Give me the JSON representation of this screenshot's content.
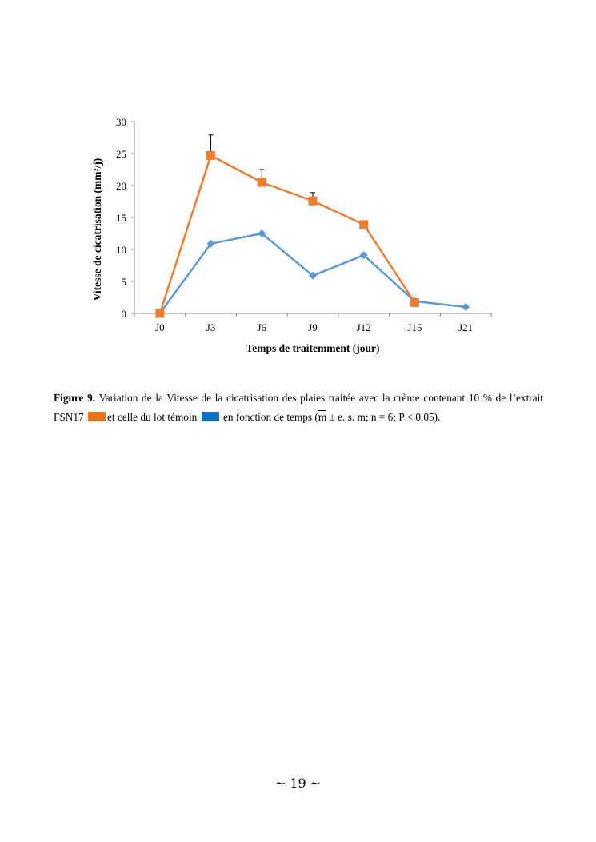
{
  "chart_data": {
    "type": "line",
    "title": "",
    "xlabel": "Temps de traitemment (jour)",
    "ylabel": "Vitesse de cicatrisation (mm²/j)",
    "ylim": [
      0,
      30
    ],
    "yticks": [
      "0",
      "5",
      "10",
      "15",
      "20",
      "25",
      "30"
    ],
    "categories": [
      "J0",
      "J3",
      "J6",
      "J9",
      "J12",
      "J15",
      "J21"
    ],
    "grid": false,
    "legend": "none",
    "series": [
      {
        "name": "Extrait FSN17",
        "color": "#ED7D31",
        "marker": "square",
        "values": [
          0,
          24.7,
          20.5,
          17.6,
          13.9,
          1.7,
          null
        ],
        "error_upper": [
          null,
          27.9,
          22.5,
          18.9,
          null,
          null,
          null
        ]
      },
      {
        "name": "Lot témoin",
        "color": "#5B9BD5",
        "marker": "diamond",
        "values": [
          0,
          10.9,
          12.5,
          5.9,
          9.1,
          1.9,
          1.0
        ]
      }
    ]
  },
  "caption": {
    "label": "Figure 9.",
    "text1": " Variation de la Vitesse de la cicatrisation des plaies traitée avec la crème contenant 10 % de l’extrait FSN17",
    "text2": "et celle du lot témoin",
    "text3": "en fonction de temps (",
    "mbar": "m",
    "text4": " ± e. s. m; n = 6; P < 0,05).",
    "swatch_orange": "#E8741A",
    "swatch_blue": "#0B6FC6"
  },
  "page_number": "~ 19 ~"
}
